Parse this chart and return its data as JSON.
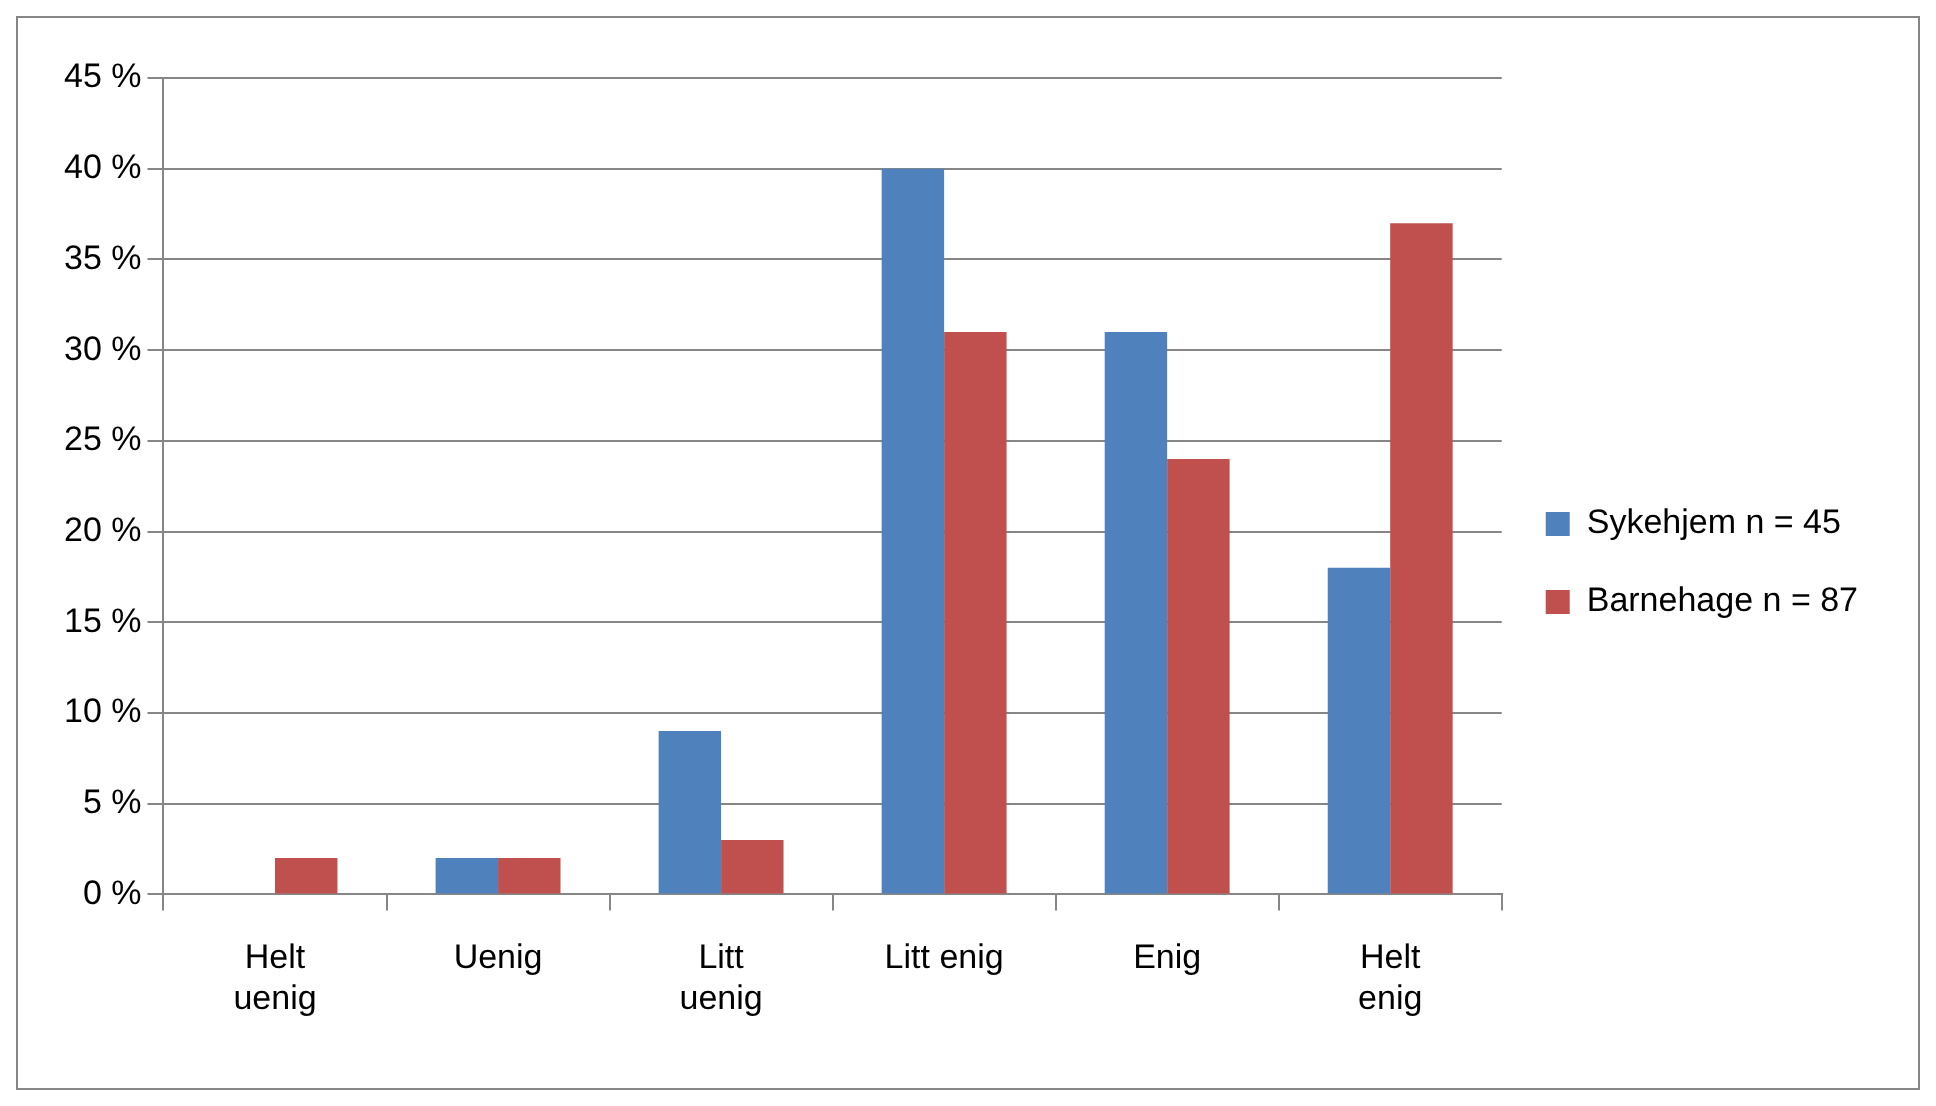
{
  "chart_data": {
    "type": "bar",
    "categories": [
      "Helt uenig",
      "Uenig",
      "Litt uenig",
      "Litt enig",
      "Enig",
      "Helt enig"
    ],
    "series": [
      {
        "name": "Sykehjem n = 45",
        "color": "#4f81bd",
        "values": [
          0,
          2,
          9,
          40,
          31,
          18
        ]
      },
      {
        "name": "Barnehage n = 87",
        "color": "#c0504d",
        "values": [
          2,
          2,
          3,
          31,
          24,
          37
        ]
      }
    ],
    "ylim": [
      0,
      45
    ],
    "yticks": [
      {
        "value": 0,
        "label": "0 %"
      },
      {
        "value": 5,
        "label": "5 %"
      },
      {
        "value": 10,
        "label": "10 %"
      },
      {
        "value": 15,
        "label": "15 %"
      },
      {
        "value": 20,
        "label": "20 %"
      },
      {
        "value": 25,
        "label": "25 %"
      },
      {
        "value": 30,
        "label": "30 %"
      },
      {
        "value": 35,
        "label": "35 %"
      },
      {
        "value": 40,
        "label": "40 %"
      },
      {
        "value": 45,
        "label": "45 %"
      }
    ],
    "grid": "y",
    "legend": "right"
  }
}
